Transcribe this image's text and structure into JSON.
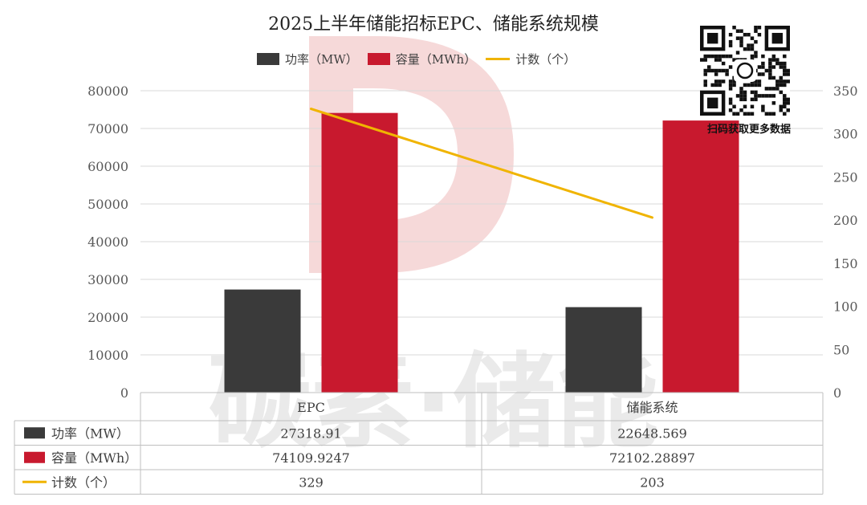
{
  "chart_data": {
    "type": "bar",
    "title": "2025上半年储能招标EPC、储能系统规模",
    "categories": [
      "EPC",
      "储能系统"
    ],
    "series": [
      {
        "name": "功率（MW）",
        "type": "bar",
        "axis": "left",
        "color": "#3a3a3a",
        "values": [
          27318.91,
          22648.569
        ],
        "labels": [
          "27318.91",
          "22648.569"
        ]
      },
      {
        "name": "容量（MWh）",
        "type": "bar",
        "axis": "left",
        "color": "#c8192e",
        "values": [
          74109.9247,
          72102.28897
        ],
        "labels": [
          "74109.9247",
          "72102.28897"
        ]
      },
      {
        "name": "计数（个）",
        "type": "line",
        "axis": "right",
        "color": "#f0b400",
        "values": [
          329,
          203
        ],
        "labels": [
          "329",
          "203"
        ]
      }
    ],
    "y_left": {
      "min": 0,
      "max": 80000,
      "step": 10000,
      "ticks": [
        "0",
        "10000",
        "20000",
        "30000",
        "40000",
        "50000",
        "60000",
        "70000",
        "80000"
      ]
    },
    "y_right": {
      "min": 0,
      "max": 350,
      "step": 50,
      "ticks": [
        "0",
        "50",
        "100",
        "150",
        "200",
        "250",
        "300",
        "350"
      ]
    },
    "grid": true,
    "legend_position": "top",
    "data_table": true
  },
  "watermark": {
    "text": "碳素·储能",
    "logo": "d-logo"
  },
  "qr": {
    "caption": "扫码获取更多数据",
    "icon": "qr-code-icon"
  }
}
